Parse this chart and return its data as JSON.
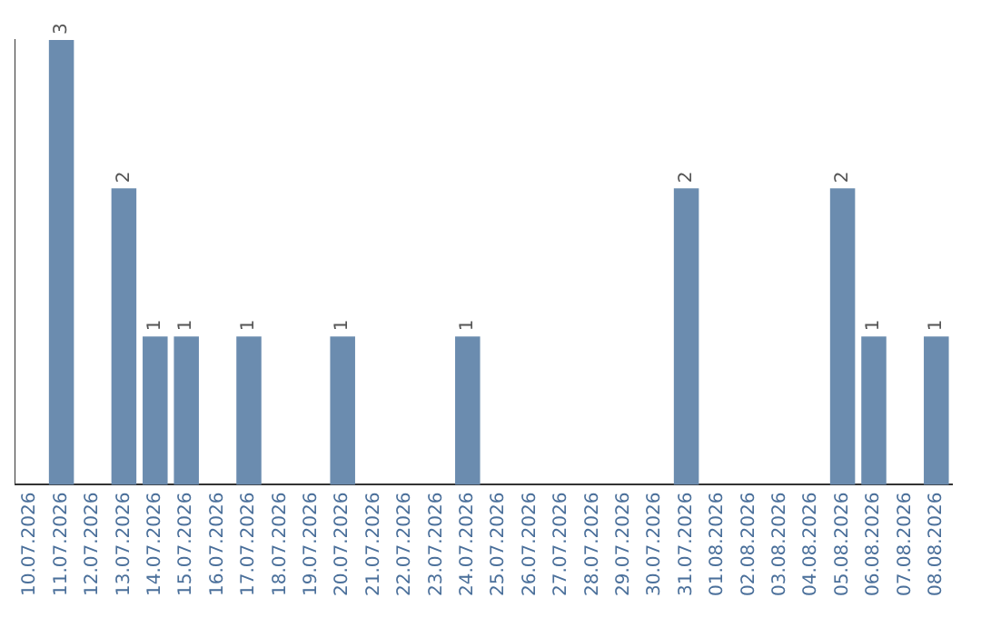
{
  "chart_data": {
    "type": "bar",
    "categories": [
      "10.07.2026",
      "11.07.2026",
      "12.07.2026",
      "13.07.2026",
      "14.07.2026",
      "15.07.2026",
      "16.07.2026",
      "17.07.2026",
      "18.07.2026",
      "19.07.2026",
      "20.07.2026",
      "21.07.2026",
      "22.07.2026",
      "23.07.2026",
      "24.07.2026",
      "25.07.2026",
      "26.07.2026",
      "27.07.2026",
      "28.07.2026",
      "29.07.2026",
      "30.07.2026",
      "31.07.2026",
      "01.08.2026",
      "02.08.2026",
      "03.08.2026",
      "04.08.2026",
      "05.08.2026",
      "06.08.2026",
      "07.08.2026",
      "08.08.2026"
    ],
    "values": [
      0,
      3,
      0,
      2,
      1,
      1,
      0,
      1,
      0,
      0,
      1,
      0,
      0,
      0,
      1,
      0,
      0,
      0,
      0,
      0,
      0,
      2,
      0,
      0,
      0,
      0,
      2,
      1,
      0,
      1
    ],
    "value_labels": [
      null,
      "3",
      null,
      "2",
      "1",
      "1",
      null,
      "1",
      null,
      null,
      "1",
      null,
      null,
      null,
      "1",
      null,
      null,
      null,
      null,
      null,
      null,
      "2",
      null,
      null,
      null,
      null,
      "2",
      "1",
      null,
      "1"
    ],
    "color": "#6b8caf",
    "grid": false,
    "legend": false,
    "tick_labels": "x"
  }
}
